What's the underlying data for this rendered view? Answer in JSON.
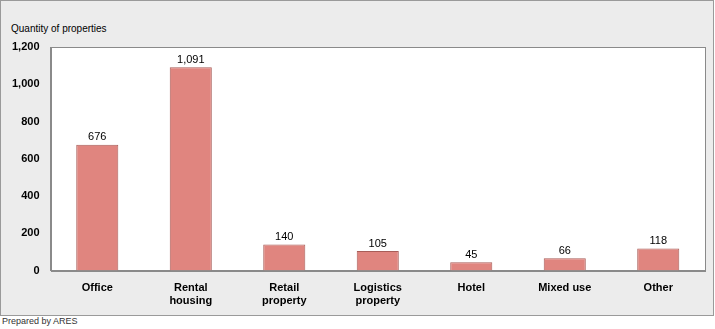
{
  "chart_data": {
    "type": "bar",
    "y_label": "Quantity of properties",
    "source": "Prepared by ARES",
    "categories": [
      "Office",
      "Rental housing",
      "Retail property",
      "Logistics property",
      "Hotel",
      "Mixed use",
      "Other"
    ],
    "values": [
      676,
      1091,
      140,
      105,
      45,
      66,
      118
    ],
    "value_labels": [
      "676",
      "1,091",
      "140",
      "105",
      "45",
      "66",
      "118"
    ],
    "color": "#e0857f",
    "ylim": [
      0,
      1200
    ],
    "yticks": [
      0,
      200,
      400,
      600,
      800,
      {
        "value": 1000,
        "label": "1,000"
      },
      {
        "value": 1200,
        "label": "1,200"
      }
    ],
    "grid": false,
    "data_labels": true
  }
}
